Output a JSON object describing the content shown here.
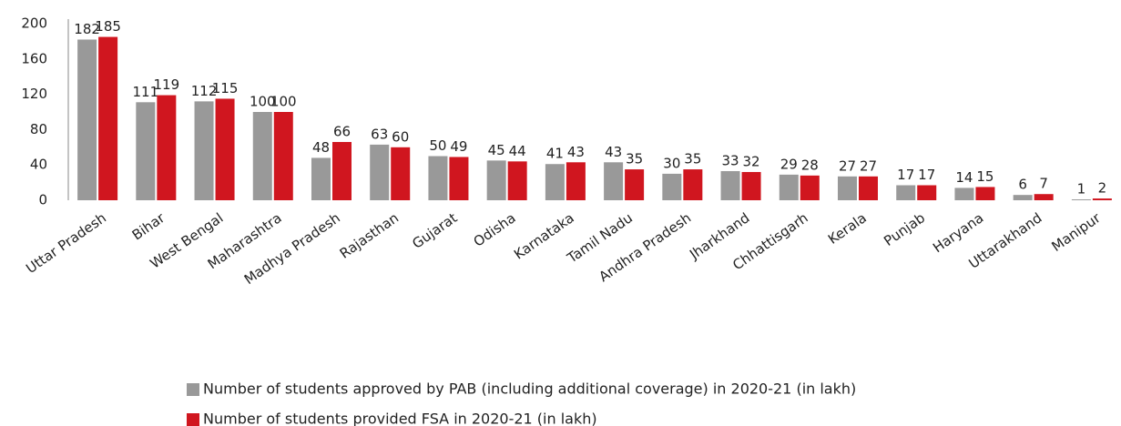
{
  "chart_data": {
    "type": "bar",
    "categories": [
      "Uttar Pradesh",
      "Bihar",
      "West Bengal",
      "Maharashtra",
      "Madhya Pradesh",
      "Rajasthan",
      "Gujarat",
      "Odisha",
      "Karnataka",
      "Tamil Nadu",
      "Andhra Pradesh",
      "Jharkhand",
      "Chhattisgarh",
      "Kerala",
      "Punjab",
      "Haryana",
      "Uttarakhand",
      "Manipur"
    ],
    "series": [
      {
        "name": "Number of students approved by PAB (including additional coverage) in 2020-21 (in lakh)",
        "color": "#999999",
        "values": [
          182,
          111,
          112,
          100,
          48,
          63,
          50,
          45,
          41,
          43,
          30,
          33,
          29,
          27,
          17,
          14,
          6,
          1
        ]
      },
      {
        "name": "Number of students provided FSA in 2020-21 (in lakh)",
        "color": "#d0161f",
        "values": [
          185,
          119,
          115,
          100,
          66,
          60,
          49,
          44,
          43,
          35,
          35,
          32,
          28,
          27,
          17,
          15,
          7,
          2
        ]
      }
    ],
    "ylim": [
      0,
      200
    ],
    "yticks": [
      0,
      40,
      80,
      120,
      160,
      200
    ],
    "grid": false
  }
}
